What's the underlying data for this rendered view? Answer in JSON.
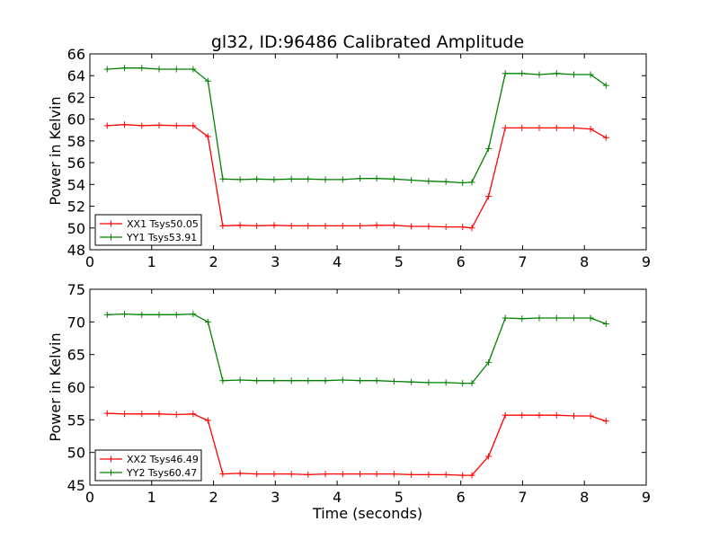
{
  "title": "gl32, ID:96486 Calibrated Amplitude",
  "xlabel": "Time (seconds)",
  "colors": {
    "red": "#ff0000",
    "green": "#008000"
  },
  "chart_data": [
    {
      "type": "line",
      "ylabel": "Power in Kelvin",
      "xlim": [
        0,
        9
      ],
      "ylim": [
        48,
        66
      ],
      "xticks": [
        "0",
        "1",
        "2",
        "3",
        "4",
        "5",
        "6",
        "7",
        "8",
        "9"
      ],
      "yticks": [
        "48",
        "50",
        "52",
        "54",
        "56",
        "58",
        "60",
        "62",
        "64",
        "66"
      ],
      "legend_position": "lower-left",
      "x": [
        0.28,
        0.56,
        0.84,
        1.12,
        1.4,
        1.67,
        1.91,
        2.15,
        2.43,
        2.7,
        2.98,
        3.26,
        3.53,
        3.81,
        4.09,
        4.37,
        4.64,
        4.92,
        5.2,
        5.48,
        5.76,
        6.03,
        6.18,
        6.45,
        6.72,
        6.99,
        7.27,
        7.55,
        7.83,
        8.1,
        8.35
      ],
      "series": [
        {
          "name": "XX1 Tsys50.05",
          "color": "#ff0000",
          "values": [
            59.4,
            59.5,
            59.4,
            59.45,
            59.4,
            59.4,
            58.4,
            50.2,
            50.25,
            50.2,
            50.25,
            50.2,
            50.2,
            50.2,
            50.2,
            50.2,
            50.25,
            50.25,
            50.15,
            50.15,
            50.1,
            50.1,
            50.0,
            52.9,
            59.2,
            59.2,
            59.2,
            59.2,
            59.2,
            59.1,
            58.3
          ]
        },
        {
          "name": "YY1 Tsys53.91",
          "color": "#008000",
          "values": [
            64.6,
            64.7,
            64.7,
            64.6,
            64.6,
            64.6,
            63.5,
            54.5,
            54.45,
            54.5,
            54.45,
            54.5,
            54.5,
            54.45,
            54.45,
            54.55,
            54.55,
            54.5,
            54.4,
            54.3,
            54.25,
            54.15,
            54.2,
            57.3,
            64.2,
            64.2,
            64.1,
            64.2,
            64.1,
            64.1,
            63.1
          ]
        }
      ]
    },
    {
      "type": "line",
      "ylabel": "Power in Kelvin",
      "xlabel": "Time (seconds)",
      "xlim": [
        0,
        9
      ],
      "ylim": [
        45,
        75
      ],
      "xticks": [
        "0",
        "1",
        "2",
        "3",
        "4",
        "5",
        "6",
        "7",
        "8",
        "9"
      ],
      "yticks": [
        "45",
        "50",
        "55",
        "60",
        "65",
        "70",
        "75"
      ],
      "legend_position": "lower-left",
      "x": [
        0.28,
        0.56,
        0.84,
        1.12,
        1.4,
        1.67,
        1.91,
        2.15,
        2.43,
        2.7,
        2.98,
        3.26,
        3.53,
        3.81,
        4.09,
        4.37,
        4.64,
        4.92,
        5.2,
        5.48,
        5.76,
        6.03,
        6.18,
        6.45,
        6.72,
        6.99,
        7.27,
        7.55,
        7.83,
        8.1,
        8.35
      ],
      "series": [
        {
          "name": "XX2 Tsys46.49",
          "color": "#ff0000",
          "values": [
            56.0,
            55.9,
            55.9,
            55.9,
            55.8,
            55.9,
            54.9,
            46.7,
            46.8,
            46.7,
            46.7,
            46.7,
            46.6,
            46.7,
            46.7,
            46.7,
            46.7,
            46.7,
            46.6,
            46.6,
            46.6,
            46.5,
            46.5,
            49.4,
            55.7,
            55.7,
            55.7,
            55.7,
            55.6,
            55.6,
            54.8
          ]
        },
        {
          "name": "YY2 Tsys60.47",
          "color": "#008000",
          "values": [
            71.1,
            71.2,
            71.1,
            71.1,
            71.1,
            71.2,
            70.0,
            61.0,
            61.1,
            61.0,
            61.0,
            61.0,
            61.0,
            61.0,
            61.1,
            61.0,
            61.0,
            60.9,
            60.8,
            60.7,
            60.7,
            60.6,
            60.6,
            63.8,
            70.6,
            70.5,
            70.6,
            70.6,
            70.6,
            70.6,
            69.7
          ]
        }
      ]
    }
  ]
}
